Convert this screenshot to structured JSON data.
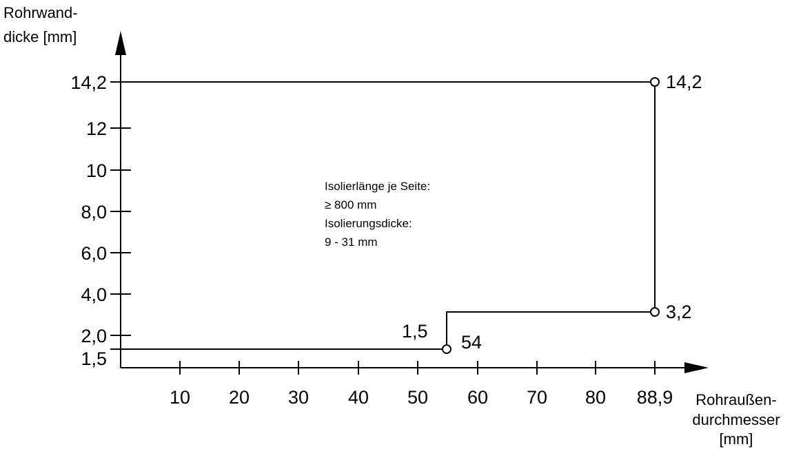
{
  "chart_data": {
    "type": "line",
    "ylabel_lines": [
      "Rohrwand-",
      "dicke [mm]"
    ],
    "xlabel_lines": [
      "Rohraußen-",
      "durchmesser",
      "[mm]"
    ],
    "x_ticks": [
      {
        "value": 10,
        "label": "10"
      },
      {
        "value": 20,
        "label": "20"
      },
      {
        "value": 30,
        "label": "30"
      },
      {
        "value": 40,
        "label": "40"
      },
      {
        "value": 50,
        "label": "50"
      },
      {
        "value": 60,
        "label": "60"
      },
      {
        "value": 70,
        "label": "70"
      },
      {
        "value": 80,
        "label": "80"
      },
      {
        "value": 88.9,
        "label": "88,9"
      }
    ],
    "y_ticks": [
      {
        "value": 1.5,
        "label": "1,5"
      },
      {
        "value": 2.0,
        "label": "2,0"
      },
      {
        "value": 4.0,
        "label": "4,0"
      },
      {
        "value": 6.0,
        "label": "6,0"
      },
      {
        "value": 8.0,
        "label": "8,0"
      },
      {
        "value": 10,
        "label": "10"
      },
      {
        "value": 12,
        "label": "12"
      },
      {
        "value": 14.2,
        "label": "14,2"
      }
    ],
    "boundary": [
      {
        "x": 0,
        "y": 1.5
      },
      {
        "x": 54,
        "y": 1.5
      },
      {
        "x": 54,
        "y": 3.2
      },
      {
        "x": 88.9,
        "y": 3.2
      },
      {
        "x": 88.9,
        "y": 14.2
      },
      {
        "x": 0,
        "y": 14.2
      }
    ],
    "points": [
      {
        "x": 54,
        "y": 1.5,
        "labels": [
          "1,5",
          "54"
        ]
      },
      {
        "x": 88.9,
        "y": 3.2,
        "labels": [
          "3,2"
        ]
      },
      {
        "x": 88.9,
        "y": 14.2,
        "labels": [
          "14,2"
        ]
      }
    ],
    "annotation_lines": [
      "Isolierlänge je Seite:",
      "≥  800 mm",
      "Isolierungsdicke:",
      "9 - 31 mm"
    ]
  }
}
